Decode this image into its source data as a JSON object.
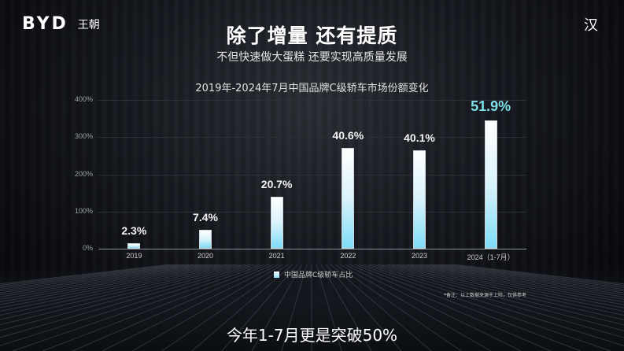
{
  "header": {
    "brand_logo": "BYD",
    "brand_sub": "王朝",
    "model_logo": "汉",
    "title": "除了增量 还有提质",
    "subtitle": "不但快速做大蛋糕 还要实现高质量发展"
  },
  "chart_data": {
    "type": "bar",
    "title": "2019年-2024年7月中国品牌C级轿车市场份额变化",
    "categories": [
      "2019",
      "2020",
      "2021",
      "2022",
      "2023",
      "2024（1-7月）"
    ],
    "series": [
      {
        "name": "中国品牌C级轿车占比",
        "values": [
          2.3,
          7.4,
          20.7,
          40.6,
          40.1,
          51.9
        ]
      }
    ],
    "data_labels": [
      "2.3%",
      "7.4%",
      "20.7%",
      "40.6%",
      "40.1%",
      "51.9%"
    ],
    "bar_plotted_heights_on_axis": [
      15,
      50,
      140,
      270,
      265,
      345
    ],
    "yticks": [
      "0%",
      "100%",
      "200%",
      "300%",
      "400%"
    ],
    "ylim": [
      0,
      400
    ],
    "xlabel": "",
    "ylabel": "",
    "grid": true,
    "legend_position": "bottom",
    "highlight_color": "#7fdfe6",
    "bar_color_top": "#ffffff",
    "bar_color_bottom": "#7fdcf7"
  },
  "footer": {
    "note": "*备注：以上数据来源于上险，仅供参考",
    "caption": "今年1-7月更是突破50%"
  }
}
